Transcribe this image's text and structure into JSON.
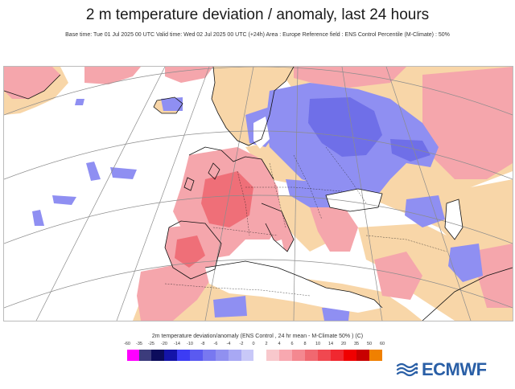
{
  "title": "2 m temperature deviation / anomaly, last 24 hours",
  "subtitle": "Base time: Tue 01 Jul 2025 00 UTC Valid time: Wed 02 Jul 2025 00 UTC (+24h) Area : Europe Reference field : ENS Control Percentile (M-Climate) : 50%",
  "legend": {
    "title": "2m temperature deviation/anomaly (ENS Control , 24 hr mean - M-Climate 50% ) (C)",
    "ticks": [
      "-60",
      "-35",
      "-25",
      "-20",
      "-14",
      "-10",
      "-8",
      "-6",
      "-4",
      "-2",
      "0",
      "2",
      "4",
      "6",
      "8",
      "10",
      "14",
      "20",
      "35",
      "50",
      "60"
    ],
    "colors": {
      "neg": [
        "#ff00ff",
        "#3c3c7c",
        "#0c0c5c",
        "#1414a8",
        "#3c3cf4",
        "#5a5af0",
        "#7878f0",
        "#9090f0",
        "#a8a8f4",
        "#c8c8f8"
      ],
      "pos": [
        "#f8c8cc",
        "#f8a8b0",
        "#f48890",
        "#f06870",
        "#f04850",
        "#f02830",
        "#f00000",
        "#c80000",
        "#f08000"
      ]
    }
  },
  "logo": {
    "text": "ECMWF"
  },
  "map": {
    "colors": {
      "land_neutral": "#f8d6a8",
      "warm": "#f5a6ac",
      "warm_strong": "#ef6f78",
      "cold": "#8f8ff2",
      "cold_strong": "#6f6fe8",
      "sea": "#ffffff",
      "coast": "#111111",
      "grid": "#8c8c8c"
    }
  }
}
